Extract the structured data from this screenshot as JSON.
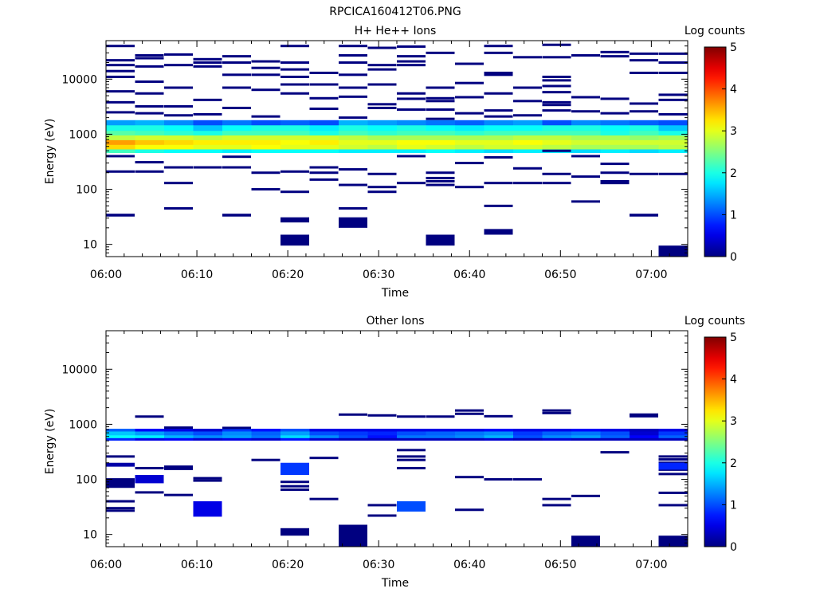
{
  "figure": {
    "title": "RPCICA160412T06.PNG"
  },
  "chart_data": [
    {
      "type": "heatmap",
      "title": "H+ He++ Ions",
      "xlabel": "Time",
      "ylabel": "Energy (eV)",
      "x_ticks": [
        "06:00",
        "06:10",
        "06:20",
        "06:30",
        "06:40",
        "06:50",
        "07:00"
      ],
      "x_tick_minutes": [
        0,
        10,
        20,
        30,
        40,
        50,
        60
      ],
      "xlim_minutes": [
        0,
        64
      ],
      "y_scale": "log",
      "ylim": [
        6,
        50000
      ],
      "y_ticks": [
        10,
        100,
        1000,
        10000
      ],
      "y_tick_labels": [
        "10",
        "100",
        "1000",
        "10000"
      ],
      "colorbar": {
        "label": "Log counts",
        "range": [
          0,
          5
        ],
        "ticks": [
          "0",
          "1",
          "2",
          "3",
          "4",
          "5"
        ],
        "colormap": "jet"
      },
      "time_columns_minutes": [
        0,
        3.2,
        6.4,
        9.6,
        12.8,
        16,
        19.2,
        22.4,
        25.6,
        28.8,
        32,
        35.2,
        38.4,
        41.6,
        44.8,
        48,
        51.2,
        54.4,
        57.6,
        60.8,
        64
      ],
      "main_band": [
        {
          "e_lo": 1450,
          "e_hi": 1800,
          "values": [
            1.4,
            1.5,
            1.3,
            1.0,
            1.2,
            1.0,
            1.1,
            1.0,
            1.5,
            1.4,
            1.3,
            1.2,
            1.1,
            1.3,
            1.4,
            1.0,
            1.3,
            1.2,
            1.1,
            1.0
          ]
        },
        {
          "e_lo": 1150,
          "e_hi": 1450,
          "values": [
            2.0,
            2.0,
            1.9,
            1.6,
            1.9,
            2.0,
            2.0,
            1.8,
            2.0,
            1.9,
            2.0,
            1.9,
            1.8,
            1.9,
            1.9,
            2.0,
            2.0,
            1.9,
            2.0,
            1.6
          ]
        },
        {
          "e_lo": 950,
          "e_hi": 1150,
          "values": [
            2.3,
            2.2,
            2.1,
            2.0,
            2.2,
            2.2,
            2.2,
            2.0,
            2.2,
            2.1,
            2.2,
            2.2,
            2.1,
            2.2,
            2.2,
            2.2,
            2.2,
            2.0,
            2.2,
            2.0
          ]
        },
        {
          "e_lo": 780,
          "e_hi": 950,
          "values": [
            2.8,
            2.9,
            2.9,
            2.8,
            2.9,
            2.9,
            2.9,
            2.9,
            2.8,
            2.7,
            2.7,
            2.7,
            2.7,
            2.7,
            2.8,
            2.8,
            2.7,
            2.7,
            2.6,
            2.7
          ]
        },
        {
          "e_lo": 640,
          "e_hi": 780,
          "values": [
            3.6,
            3.4,
            3.3,
            3.2,
            3.2,
            3.2,
            3.1,
            3.2,
            3.0,
            3.0,
            3.1,
            3.1,
            3.0,
            3.0,
            3.1,
            3.0,
            2.9,
            2.9,
            2.9,
            2.9
          ]
        },
        {
          "e_lo": 530,
          "e_hi": 640,
          "values": [
            3.3,
            3.1,
            3.1,
            3.0,
            3.0,
            3.1,
            3.0,
            3.0,
            2.9,
            2.8,
            3.0,
            2.9,
            2.8,
            2.9,
            2.9,
            2.8,
            2.7,
            2.7,
            2.7,
            2.8
          ]
        },
        {
          "e_lo": 460,
          "e_hi": 530,
          "values": [
            2.2,
            2.0,
            1.9,
            1.9,
            1.8,
            1.9,
            1.9,
            1.9,
            1.8,
            1.8,
            1.8,
            1.9,
            1.8,
            1.7,
            1.8,
            1.8,
            1.7,
            1.8,
            1.7,
            1.8
          ]
        }
      ],
      "sparse_counts": [
        {
          "col": 0,
          "energies": [
            40000,
            22000,
            18000,
            14000,
            11000,
            6000,
            3800,
            2500,
            400,
            210
          ]
        },
        {
          "col": 1,
          "energies": [
            27000,
            24000,
            17000,
            9000,
            5500,
            3200,
            2400,
            310,
            210
          ]
        },
        {
          "col": 2,
          "energies": [
            28000,
            18000,
            7000,
            3200,
            2200,
            250,
            130,
            45
          ]
        },
        {
          "col": 3,
          "energies": [
            23000,
            20000,
            17000,
            4200,
            2300,
            250
          ]
        },
        {
          "col": 4,
          "energies": [
            26000,
            20000,
            12000,
            7000,
            3000,
            390,
            250
          ]
        },
        {
          "col": 5,
          "energies": [
            21000,
            16000,
            12000,
            6400,
            2100,
            200,
            100
          ]
        },
        {
          "col": 6,
          "energies": [
            40000,
            20000,
            15000,
            11000,
            8000,
            5500,
            210,
            90
          ]
        },
        {
          "col": 7,
          "energies": [
            13000,
            8000,
            4500,
            2900,
            250,
            200,
            150
          ]
        },
        {
          "col": 8,
          "energies": [
            40000,
            27000,
            20000,
            12000,
            7000,
            4800,
            2000,
            230,
            120,
            45
          ]
        },
        {
          "col": 9,
          "energies": [
            37000,
            18000,
            15000,
            8000,
            3500,
            3000,
            190,
            110,
            90
          ]
        },
        {
          "col": 10,
          "energies": [
            39000,
            26000,
            21000,
            18000,
            5500,
            4400,
            2800,
            400,
            130
          ]
        },
        {
          "col": 11,
          "energies": [
            30000,
            7000,
            4500,
            4000,
            2800,
            1900,
            200,
            160,
            140,
            120
          ]
        },
        {
          "col": 12,
          "energies": [
            19000,
            8500,
            4700,
            2400,
            300,
            110
          ]
        },
        {
          "col": 13,
          "energies": [
            40000,
            30000,
            13000,
            12000,
            5500,
            2700,
            2100,
            380,
            130,
            50
          ]
        },
        {
          "col": 14,
          "energies": [
            25000,
            7000,
            4000,
            2200,
            240,
            130
          ]
        },
        {
          "col": 15,
          "energies": [
            42000,
            25000,
            11000,
            9500,
            7500,
            5800,
            3800,
            3400,
            2700,
            500,
            190,
            130
          ]
        },
        {
          "col": 16,
          "energies": [
            27000,
            4700,
            2600,
            400,
            170,
            60
          ]
        },
        {
          "col": 17,
          "energies": [
            31000,
            26000,
            4400,
            2400,
            290,
            200,
            140,
            130
          ]
        },
        {
          "col": 18,
          "energies": [
            29000,
            22000,
            13000,
            3600,
            2600,
            190
          ]
        },
        {
          "col": 19,
          "energies": [
            29000,
            20000,
            13000,
            5200,
            4200,
            2300,
            190
          ]
        }
      ],
      "low_blocks": [
        {
          "col": 0,
          "e_lo": 32,
          "e_hi": 36
        },
        {
          "col": 2,
          "e_lo": 43,
          "e_hi": 47
        },
        {
          "col": 4,
          "e_lo": 32,
          "e_hi": 36
        },
        {
          "col": 6,
          "e_lo": 25,
          "e_hi": 31
        },
        {
          "col": 6,
          "e_lo": 9.5,
          "e_hi": 15
        },
        {
          "col": 8,
          "e_lo": 20,
          "e_hi": 31
        },
        {
          "col": 11,
          "e_lo": 9.5,
          "e_hi": 15
        },
        {
          "col": 13,
          "e_lo": 15,
          "e_hi": 19
        },
        {
          "col": 18,
          "e_lo": 32,
          "e_hi": 36
        },
        {
          "col": 19,
          "e_lo": 6,
          "e_hi": 9.5
        }
      ]
    },
    {
      "type": "heatmap",
      "title": "Other Ions",
      "xlabel": "Time",
      "ylabel": "Energy (eV)",
      "x_ticks": [
        "06:00",
        "06:10",
        "06:20",
        "06:30",
        "06:40",
        "06:50",
        "07:00"
      ],
      "x_tick_minutes": [
        0,
        10,
        20,
        30,
        40,
        50,
        60
      ],
      "xlim_minutes": [
        0,
        64
      ],
      "y_scale": "log",
      "ylim": [
        6,
        50000
      ],
      "y_ticks": [
        10,
        100,
        1000,
        10000
      ],
      "y_tick_labels": [
        "10",
        "100",
        "1000",
        "10000"
      ],
      "colorbar": {
        "label": "Log counts",
        "range": [
          0,
          5
        ],
        "ticks": [
          "0",
          "1",
          "2",
          "3",
          "4",
          "5"
        ],
        "colormap": "jet"
      },
      "time_columns_minutes": [
        0,
        3.2,
        6.4,
        9.6,
        12.8,
        16,
        19.2,
        22.4,
        25.6,
        28.8,
        32,
        35.2,
        38.4,
        41.6,
        44.8,
        48,
        51.2,
        54.4,
        57.6,
        60.8,
        64
      ],
      "main_band": [
        {
          "e_lo": 740,
          "e_hi": 830,
          "values": [
            1.1,
            0.6,
            0.5,
            0.4,
            0.9,
            0.7,
            1.0,
            0.5,
            0.5,
            0.5,
            0.5,
            0.5,
            0.5,
            0.6,
            0.5,
            0.5,
            0.6,
            0.5,
            0.3,
            0.5
          ]
        },
        {
          "e_lo": 630,
          "e_hi": 740,
          "values": [
            1.6,
            1.4,
            1.2,
            1.0,
            1.3,
            1.1,
            1.4,
            1.0,
            0.9,
            0.8,
            1.0,
            1.1,
            1.2,
            1.3,
            0.9,
            1.1,
            1.2,
            1.0,
            0.4,
            0.9
          ]
        },
        {
          "e_lo": 560,
          "e_hi": 630,
          "values": [
            1.9,
            1.8,
            1.5,
            1.3,
            1.4,
            1.2,
            1.7,
            1.3,
            1.0,
            0.7,
            1.2,
            1.2,
            1.3,
            1.5,
            1.0,
            1.3,
            1.4,
            1.1,
            0.6,
            1.1
          ]
        },
        {
          "e_lo": 510,
          "e_hi": 560,
          "values": [
            0.8,
            0.5,
            0.6,
            0.4,
            0.5,
            0.4,
            0.7,
            0.4,
            0.3,
            0.3,
            0.3,
            0.3,
            0.3,
            0.4,
            0.3,
            0.4,
            0.3,
            0.3,
            0.3,
            0.3
          ]
        }
      ],
      "sparse_counts": [
        {
          "col": 0,
          "energies": [
            260,
            40,
            30,
            27
          ]
        },
        {
          "col": 1,
          "energies": [
            1380,
            160,
            58
          ]
        },
        {
          "col": 2,
          "energies": [
            870,
            170,
            155,
            52
          ]
        },
        {
          "col": 3,
          "energies": [
            105,
            95
          ]
        },
        {
          "col": 4,
          "energies": [
            860
          ]
        },
        {
          "col": 5,
          "energies": [
            225
          ]
        },
        {
          "col": 6,
          "energies": [
            90,
            75,
            65
          ]
        },
        {
          "col": 7,
          "energies": [
            245,
            44
          ]
        },
        {
          "col": 8,
          "energies": [
            1500
          ]
        },
        {
          "col": 9,
          "energies": [
            1450,
            34,
            22
          ]
        },
        {
          "col": 10,
          "energies": [
            1380,
            340,
            260,
            225,
            160
          ]
        },
        {
          "col": 11,
          "energies": [
            1380
          ]
        },
        {
          "col": 12,
          "energies": [
            1780,
            1550,
            110,
            28
          ]
        },
        {
          "col": 13,
          "energies": [
            1400,
            100
          ]
        },
        {
          "col": 14,
          "energies": [
            100
          ]
        },
        {
          "col": 15,
          "energies": [
            1780,
            1600,
            44,
            34
          ]
        },
        {
          "col": 16,
          "energies": [
            50
          ]
        },
        {
          "col": 17,
          "energies": [
            310
          ]
        },
        {
          "col": 18,
          "energies": [
            1500,
            1400
          ]
        },
        {
          "col": 19,
          "energies": [
            260,
            230,
            200,
            175,
            150,
            125,
            57,
            34
          ]
        }
      ],
      "low_blocks": [
        {
          "col": 0,
          "e_lo": 170,
          "e_hi": 200,
          "value": 0.2
        },
        {
          "col": 0,
          "e_lo": 70,
          "e_hi": 105
        },
        {
          "col": 1,
          "e_lo": 85,
          "e_hi": 120,
          "value": 0.4
        },
        {
          "col": 3,
          "e_lo": 21,
          "e_hi": 40,
          "value": 0.5
        },
        {
          "col": 6,
          "e_lo": 120,
          "e_hi": 200,
          "value": 0.9
        },
        {
          "col": 6,
          "e_lo": 9.5,
          "e_hi": 13
        },
        {
          "col": 8,
          "e_lo": 6,
          "e_hi": 15
        },
        {
          "col": 10,
          "e_lo": 26,
          "e_hi": 40,
          "value": 1.0
        },
        {
          "col": 16,
          "e_lo": 6,
          "e_hi": 9.5
        },
        {
          "col": 19,
          "e_lo": 150,
          "e_hi": 200,
          "value": 0.8
        },
        {
          "col": 19,
          "e_lo": 6,
          "e_hi": 9.5
        }
      ]
    }
  ]
}
